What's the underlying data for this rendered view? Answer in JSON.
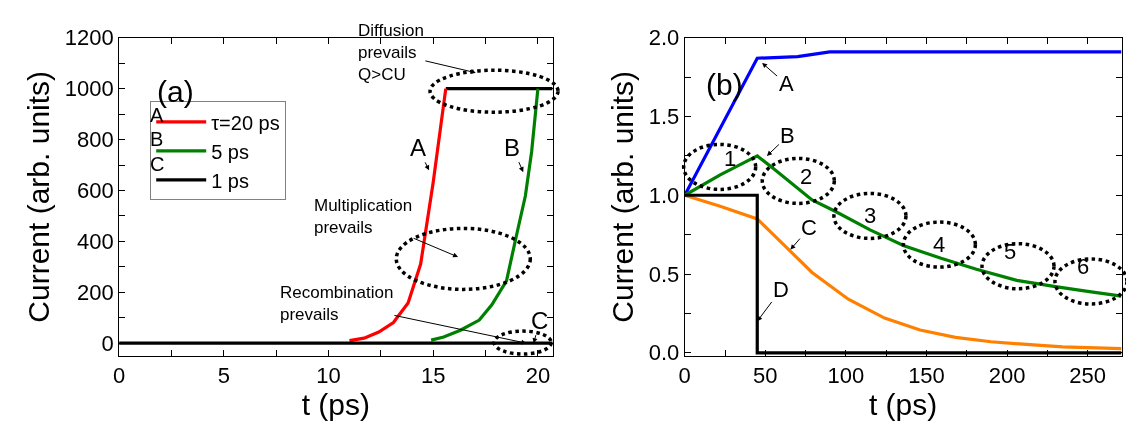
{
  "chart_data": [
    {
      "type": "line",
      "xlabel": "t (ps)",
      "ylabel": "Current (arb. units)",
      "xlim": [
        0,
        20.7
      ],
      "ylim": [
        -50,
        1200
      ],
      "xticks": [
        0,
        {
          "value": 2.5,
          "label": null
        },
        5,
        {
          "value": 7.5,
          "label": null
        },
        10,
        {
          "value": 12.5,
          "label": null
        },
        15,
        {
          "value": 17.5,
          "label": null
        },
        20
      ],
      "yticks": [
        0,
        {
          "value": 100,
          "label": null
        },
        200,
        {
          "value": 300,
          "label": null
        },
        400,
        {
          "value": 500,
          "label": null
        },
        600,
        {
          "value": 700,
          "label": null
        },
        800,
        {
          "value": 900,
          "label": null
        },
        1000,
        {
          "value": 1100,
          "label": null
        },
        1200
      ],
      "legend": "top left",
      "series": [
        {
          "color": "#000000",
          "x": [
            15.6,
            20.7
          ],
          "values": [
            1000,
            1000
          ]
        },
        {
          "name": "τ=20 ps",
          "color": "#ff0000",
          "x": [
            11.0,
            11.7,
            12.4,
            13.1,
            13.8,
            14.4,
            15.0,
            15.6
          ],
          "values": [
            10,
            20,
            44,
            81,
            158,
            311,
            632,
            1000
          ]
        },
        {
          "name": "5 ps",
          "color": "#008000",
          "x": [
            14.9,
            15.5,
            16.3,
            17.2,
            17.8,
            18.5,
            19.0,
            19.4,
            19.7,
            20.0
          ],
          "values": [
            12,
            24,
            51,
            91,
            151,
            245,
            432,
            578,
            752,
            1000
          ]
        },
        {
          "name": "1 ps",
          "color": "#000000",
          "x": [
            0,
            20.7
          ],
          "values": [
            0,
            0
          ]
        }
      ],
      "annotations": [
        "(a)",
        "A",
        "B",
        "C",
        "Diffusion\nprevails\nQ>CU",
        "Multiplication\nprevails",
        {
          "text": "Recombination\nprevails",
          "x": 19.45,
          "y": 0
        },
        {
          "text": "A",
          "x": 14.8,
          "y": 679
        },
        {
          "text": "B",
          "x": 19.3,
          "y": 672
        },
        {
          "text": "C",
          "x": 19.8,
          "y": 0
        }
      ]
    },
    {
      "type": "line",
      "xlabel": "t (ps)",
      "ylabel": "Current (arb. units)",
      "xlim": [
        0,
        271
      ],
      "ylim": [
        -0.02,
        2.0
      ],
      "xticks": [
        0,
        {
          "value": 25,
          "label": null
        },
        50,
        {
          "value": 75,
          "label": null
        },
        100,
        {
          "value": 125,
          "label": null
        },
        150,
        {
          "value": 175,
          "label": null
        },
        200,
        {
          "value": 225,
          "label": null
        },
        250
      ],
      "yticks": [
        {
          "value": 0,
          "label": "0.0"
        },
        {
          "value": 0.25,
          "label": null
        },
        {
          "value": 0.5,
          "label": "0.5"
        },
        {
          "value": 0.75,
          "label": null
        },
        {
          "value": 1,
          "label": "1.0"
        },
        {
          "value": 1.25,
          "label": null
        },
        {
          "value": 1.5,
          "label": "1.5"
        },
        {
          "value": 1.75,
          "label": null
        },
        {
          "value": 2,
          "label": "2.0"
        }
      ],
      "series": [
        {
          "color": "#0000ff",
          "x": [
            0,
            45,
            70,
            90,
            271
          ],
          "values": [
            1,
            1.87,
            1.88,
            1.91,
            1.91
          ]
        },
        {
          "color": "#008000",
          "x": [
            0,
            22,
            45,
            55,
            79,
            93,
            115,
            136,
            159,
            181,
            206,
            230,
            250,
            271
          ],
          "values": [
            1,
            1.13,
            1.25,
            1.17,
            0.97,
            0.9,
            0.78,
            0.68,
            0.6,
            0.53,
            0.46,
            0.42,
            0.39,
            0.36
          ]
        },
        {
          "color": "#ff8000",
          "x": [
            0,
            22,
            45,
            62,
            79,
            101.5,
            124,
            146,
            168,
            190,
            212,
            234.5,
            271
          ],
          "values": [
            1,
            0.93,
            0.85,
            0.68,
            0.51,
            0.34,
            0.22,
            0.145,
            0.098,
            0.07,
            0.053,
            0.038,
            0.026
          ]
        },
        {
          "color": "#000000",
          "x": [
            0,
            45,
            45,
            271
          ],
          "values": [
            1,
            1,
            0,
            0
          ]
        }
      ],
      "annotations": [
        "(b)",
        {
          "text": "A",
          "x": 48,
          "y": 1.84
        },
        {
          "text": "B",
          "x": 51,
          "y": 1.25
        },
        {
          "text": "C",
          "x": 65.6,
          "y": 0.655
        },
        {
          "text": "D",
          "x": 45,
          "y": 0.2
        },
        "1",
        "2",
        "3",
        "4",
        "5",
        "6"
      ]
    }
  ]
}
